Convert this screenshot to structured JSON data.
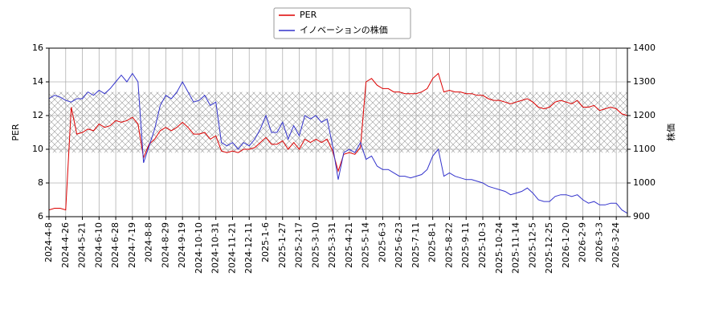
{
  "chart_data": {
    "type": "line",
    "categories": [
      "2024-4-8",
      null,
      null,
      "2024-4-26",
      null,
      null,
      "2024-5-21",
      null,
      null,
      "2024-6-10",
      null,
      null,
      "2024-6-28",
      null,
      null,
      "2024-7-19",
      null,
      null,
      "2024-8-8",
      null,
      null,
      "2024-8-29",
      null,
      null,
      "2024-9-19",
      null,
      null,
      "2024-10-10",
      null,
      null,
      "2024-10-31",
      null,
      null,
      "2024-11-21",
      null,
      null,
      "2024-12-11",
      null,
      null,
      "2025-1-6",
      null,
      null,
      "2025-1-27",
      null,
      null,
      "2025-2-17",
      null,
      null,
      "2025-3-10",
      null,
      null,
      "2025-3-31",
      null,
      null,
      "2025-4-21",
      null,
      null,
      "2025-5-14",
      null,
      null,
      "2025-6-3",
      null,
      null,
      "2025-6-23",
      null,
      null,
      "2025-7-11",
      null,
      null,
      "2025-8-1",
      null,
      null,
      "2025-8-22",
      null,
      null,
      "2025-9-11",
      null,
      null,
      "2025-10-3",
      null,
      null,
      "2025-10-24",
      null,
      null,
      "2025-11-14",
      null,
      null,
      "2025-12-5",
      null,
      null,
      "2025-12-25",
      null,
      null,
      "2026-1-20",
      null,
      null,
      "2026-2-9",
      null,
      null,
      "2026-3-3",
      null,
      null,
      "2026-3-24",
      null,
      null
    ],
    "series": [
      {
        "name": "PER",
        "color": "#dd0000",
        "values": [
          6.4,
          6.5,
          6.5,
          6.4,
          12.5,
          10.9,
          11.0,
          11.2,
          11.1,
          11.5,
          11.3,
          11.4,
          11.7,
          11.6,
          11.7,
          11.9,
          11.5,
          9.5,
          10.3,
          10.6,
          11.1,
          11.3,
          11.1,
          11.3,
          11.6,
          11.3,
          10.9,
          10.9,
          11.0,
          10.6,
          10.8,
          9.9,
          9.8,
          9.9,
          9.8,
          10.0,
          10.0,
          10.1,
          10.4,
          10.7,
          10.3,
          10.3,
          10.5,
          10.0,
          10.4,
          10.0,
          10.6,
          10.4,
          10.6,
          10.4,
          10.6,
          9.9,
          8.7,
          9.7,
          9.8,
          9.7,
          10.1,
          14.0,
          14.2,
          13.8,
          13.6,
          13.6,
          13.4,
          13.4,
          13.3,
          13.3,
          13.3,
          13.4,
          13.6,
          14.2,
          14.5,
          13.4,
          13.5,
          13.4,
          13.4,
          13.3,
          13.3,
          13.2,
          13.2,
          13.0,
          12.9,
          12.9,
          12.8,
          12.7,
          12.8,
          12.9,
          13.0,
          12.8,
          12.5,
          12.4,
          12.5,
          12.8,
          12.9,
          12.8,
          12.7,
          12.9,
          12.5,
          12.5,
          12.6,
          12.3,
          12.4,
          12.5,
          12.4,
          12.1,
          12.0
        ]
      },
      {
        "name": "イノベーションの株価",
        "color": "#3333cc",
        "axis": "y2",
        "values": [
          1250,
          1260,
          1255,
          1245,
          1240,
          1250,
          1250,
          1270,
          1260,
          1275,
          1265,
          1280,
          1300,
          1320,
          1300,
          1325,
          1300,
          1060,
          1110,
          1160,
          1230,
          1260,
          1250,
          1270,
          1300,
          1270,
          1240,
          1245,
          1260,
          1230,
          1240,
          1120,
          1110,
          1120,
          1100,
          1120,
          1110,
          1130,
          1160,
          1200,
          1150,
          1150,
          1180,
          1130,
          1170,
          1140,
          1200,
          1190,
          1200,
          1180,
          1190,
          1110,
          1010,
          1090,
          1100,
          1090,
          1120,
          1070,
          1080,
          1050,
          1040,
          1040,
          1030,
          1020,
          1020,
          1015,
          1020,
          1025,
          1040,
          1080,
          1100,
          1020,
          1030,
          1020,
          1015,
          1010,
          1010,
          1005,
          1000,
          990,
          985,
          980,
          975,
          965,
          970,
          975,
          985,
          970,
          950,
          945,
          945,
          960,
          965,
          965,
          960,
          965,
          950,
          940,
          945,
          935,
          935,
          940,
          940,
          920,
          910
        ]
      }
    ],
    "ylabel": "PER",
    "y2label": "株価",
    "ylim": [
      6,
      16
    ],
    "yticks": [
      6,
      8,
      10,
      12,
      14,
      16
    ],
    "y2lim": [
      900,
      1400
    ],
    "y2ticks": [
      900,
      1000,
      1100,
      1200,
      1300,
      1400
    ],
    "shaded_range": [
      9.8,
      13.4
    ],
    "grid": true,
    "legend": "upper center"
  }
}
